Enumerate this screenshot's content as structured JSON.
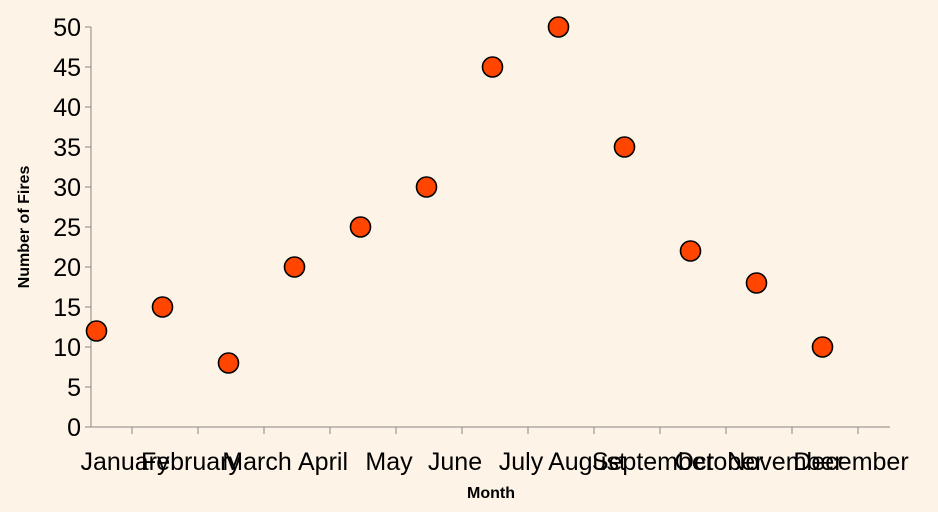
{
  "chart_data": {
    "type": "scatter",
    "title": "",
    "xlabel": "Month",
    "ylabel": "Number of Fires",
    "categories": [
      "January",
      "February",
      "March",
      "April",
      "May",
      "June",
      "July",
      "August",
      "September",
      "October",
      "November",
      "December"
    ],
    "values": [
      12,
      15,
      8,
      20,
      25,
      30,
      45,
      50,
      35,
      22,
      18,
      10
    ],
    "ylim": [
      0,
      50
    ],
    "yticks": [
      0,
      5,
      10,
      15,
      20,
      25,
      30,
      35,
      40,
      45,
      50
    ],
    "grid": false,
    "legend": "none",
    "point_color": "#ff4500",
    "background": "#fdf3e6"
  }
}
